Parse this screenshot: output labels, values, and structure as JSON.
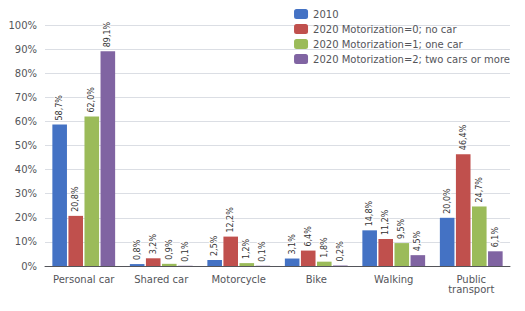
{
  "chart_data": {
    "type": "bar",
    "categories": [
      "Personal car",
      "Shared car",
      "Motorcycle",
      "Bike",
      "Walking",
      "Public\ntransport"
    ],
    "series": [
      {
        "name": "2010",
        "color": "#4472C4",
        "values": [
          58.7,
          0.8,
          2.5,
          3.1,
          14.8,
          20.0
        ],
        "value_labels": [
          "58,7%",
          "0,8%",
          "2,5%",
          "3,1%",
          "14,8%",
          "20,0%"
        ]
      },
      {
        "name": "2020 Motorization=0; no car",
        "color": "#C0504D",
        "values": [
          20.8,
          3.2,
          12.2,
          6.4,
          11.2,
          46.4
        ],
        "value_labels": [
          "20,8%",
          "3,2%",
          "12,2%",
          "6,4%",
          "11,2%",
          "46,4%"
        ]
      },
      {
        "name": "2020 Motorization=1; one car",
        "color": "#9BBB59",
        "values": [
          62.0,
          0.9,
          1.2,
          1.8,
          9.5,
          24.7
        ],
        "value_labels": [
          "62,0%",
          "0,9%",
          "1,2%",
          "1,8%",
          "9,5%",
          "24,7%"
        ]
      },
      {
        "name": "2020 Motorization=2; two cars or more",
        "color": "#8064A2",
        "values": [
          89.1,
          0.1,
          0.1,
          0.2,
          4.5,
          6.1
        ],
        "value_labels": [
          "89,1%",
          "0,1%",
          "0,1%",
          "0,2%",
          "4,5%",
          "6,1%"
        ]
      }
    ],
    "ylim": [
      0,
      100
    ],
    "yticks": [
      {
        "value": 0,
        "label": "0%"
      },
      {
        "value": 10,
        "label": "10%"
      },
      {
        "value": 20,
        "label": "20%"
      },
      {
        "value": 30,
        "label": "30%"
      },
      {
        "value": 40,
        "label": "40%"
      },
      {
        "value": 50,
        "label": "50%"
      },
      {
        "value": 60,
        "label": "60%"
      },
      {
        "value": 70,
        "label": "70%"
      },
      {
        "value": 80,
        "label": "80%"
      },
      {
        "value": 90,
        "label": "90%"
      },
      {
        "value": 100,
        "label": "100%"
      }
    ],
    "grid": true,
    "legend": "upper right",
    "data_labels": true
  }
}
